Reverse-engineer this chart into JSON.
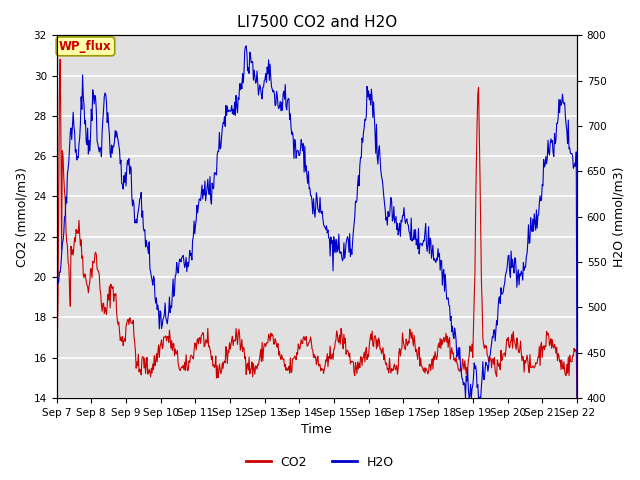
{
  "title": "LI7500 CO2 and H2O",
  "xlabel": "Time",
  "ylabel_left": "CO2 (mmol/m3)",
  "ylabel_right": "H2O (mmol/m3)",
  "ylim_left": [
    14,
    32
  ],
  "ylim_right": [
    400,
    800
  ],
  "yticks_left": [
    14,
    16,
    18,
    20,
    22,
    24,
    26,
    28,
    30,
    32
  ],
  "yticks_right": [
    400,
    450,
    500,
    550,
    600,
    650,
    700,
    750,
    800
  ],
  "xtick_labels": [
    "Sep 7",
    "Sep 8",
    "Sep 9",
    "Sep 10",
    "Sep 11",
    "Sep 12",
    "Sep 13",
    "Sep 14",
    "Sep 15",
    "Sep 16",
    "Sep 17",
    "Sep 18",
    "Sep 19",
    "Sep 20",
    "Sep 21",
    "Sep 22"
  ],
  "co2_color": "#cc0000",
  "h2o_color": "#0000cc",
  "background_color": "#e0e0e0",
  "annotation_text": "WP_flux",
  "annotation_bg": "#ffffaa",
  "annotation_border": "#999900",
  "title_fontsize": 11,
  "axis_fontsize": 9,
  "tick_fontsize": 7.5,
  "legend_fontsize": 9
}
